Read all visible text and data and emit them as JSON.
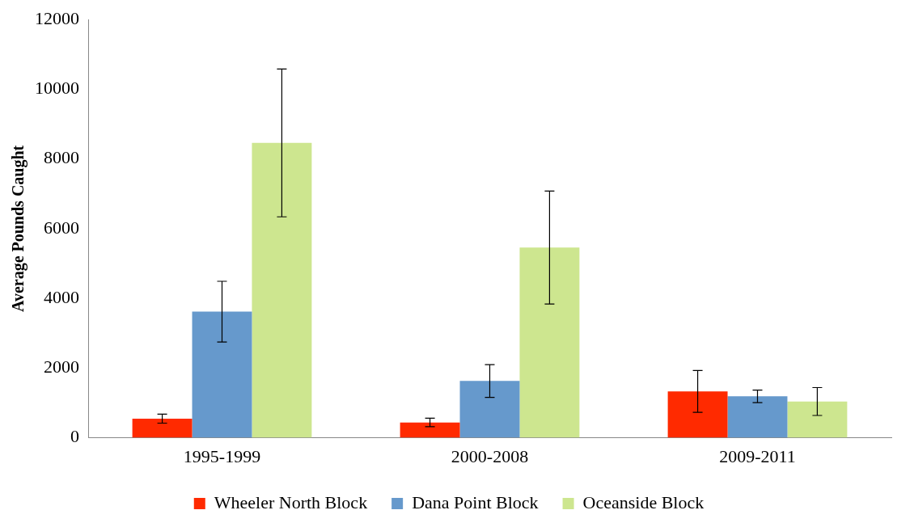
{
  "chart_data": {
    "type": "bar",
    "ylabel": "Average Pounds Caught",
    "categories": [
      "1995-1999",
      "2000-2008",
      "2009-2011"
    ],
    "series": [
      {
        "name": "Wheeler North Block",
        "color": "#ff2a00",
        "values": [
          550,
          440,
          1330
        ],
        "errors": [
          130,
          120,
          600
        ]
      },
      {
        "name": "Dana Point Block",
        "color": "#6699cc",
        "values": [
          3620,
          1630,
          1190
        ],
        "errors": [
          870,
          470,
          180
        ]
      },
      {
        "name": "Oceanside Block",
        "color": "#cde68f",
        "values": [
          8460,
          5460,
          1040
        ],
        "errors": [
          2120,
          1620,
          400
        ]
      }
    ],
    "ylim": [
      0,
      12000
    ],
    "yticks": [
      0,
      2000,
      4000,
      6000,
      8000,
      10000,
      12000
    ],
    "grid": false,
    "legend": "bottom"
  }
}
